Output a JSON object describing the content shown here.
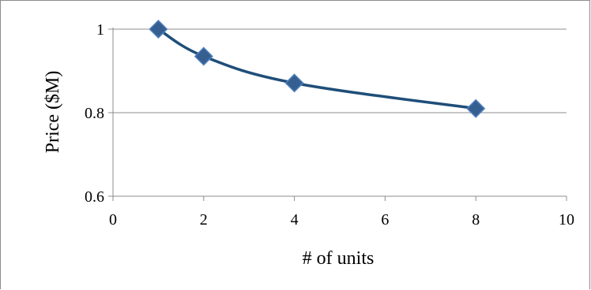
{
  "chart_data": {
    "type": "scatter",
    "title": "",
    "xlabel": "# of units",
    "ylabel": "Price ($M)",
    "xlim": [
      0,
      10
    ],
    "ylim": [
      0.6,
      1.0
    ],
    "x_ticks": [
      "0",
      "2",
      "4",
      "6",
      "8",
      "10"
    ],
    "y_ticks": [
      "0.6",
      "0.8",
      "1"
    ],
    "grid": "horizontal",
    "legend": "none",
    "series": [
      {
        "x": [
          1,
          2,
          4,
          8
        ],
        "y": [
          1.0,
          0.935,
          0.871,
          0.81
        ],
        "marker": "diamond",
        "smoothed_line": true,
        "color": "#1f4e79"
      }
    ]
  },
  "colors": {
    "series": "#1f4e79",
    "marker_fill": "#365f91",
    "marker_edge": "#4f81bd",
    "gridline": "#8c8c8c",
    "axis": "#8c8c8c"
  }
}
